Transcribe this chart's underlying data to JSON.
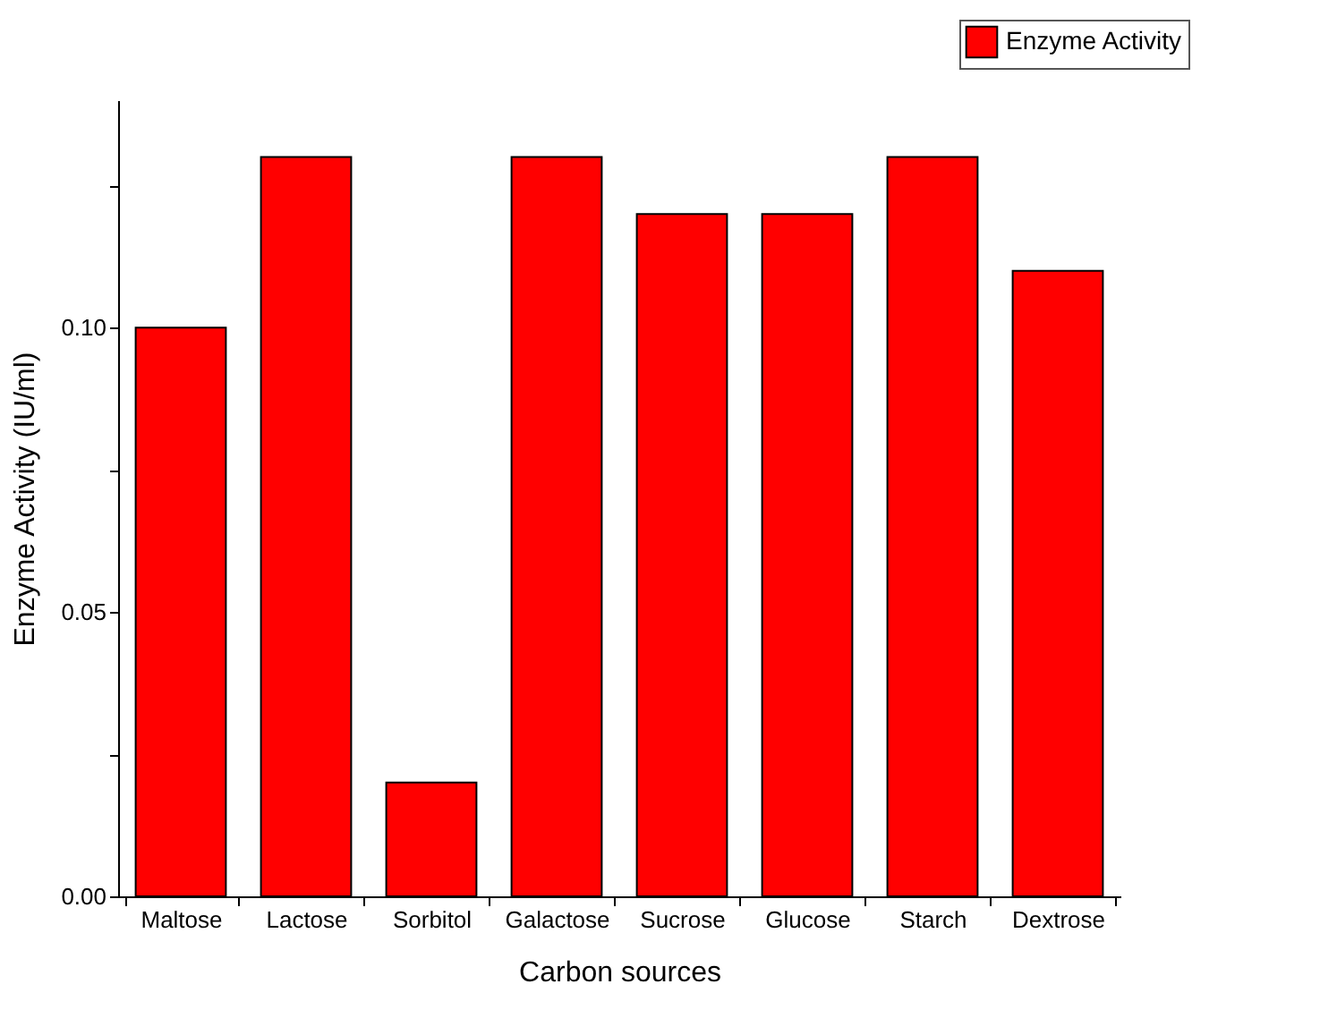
{
  "chart_data": {
    "type": "bar",
    "xlabel": "Carbon sources",
    "ylabel": "Enzyme Activity (IU/ml)",
    "categories": [
      "Maltose",
      "Lactose",
      "Sorbitol",
      "Galactose",
      "Sucrose",
      "Glucose",
      "Starch",
      "Dextrose"
    ],
    "series": [
      {
        "name": "Enzyme Activity",
        "color": "#ff0000",
        "values": [
          0.1,
          0.13,
          0.02,
          0.13,
          0.12,
          0.12,
          0.13,
          0.11
        ]
      }
    ],
    "ylim": [
      0,
      0.14
    ],
    "yticks": [
      {
        "value": 0,
        "label": "0.00"
      },
      {
        "value": 0.025,
        "label": null
      },
      {
        "value": 0.05,
        "label": "0.05"
      },
      {
        "value": 0.075,
        "label": null
      },
      {
        "value": 0.1,
        "label": "0.10"
      },
      {
        "value": 0.125,
        "label": null
      }
    ],
    "grid": false,
    "legend": "top right"
  }
}
